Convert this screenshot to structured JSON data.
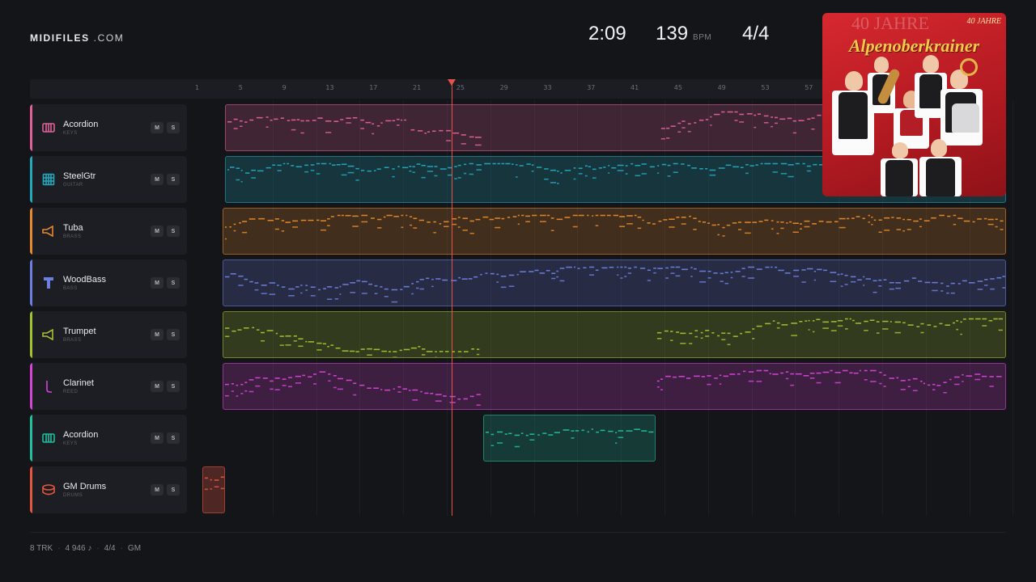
{
  "brand": {
    "name_bold": "MIDIFILES",
    "name_rest": " .COM"
  },
  "stats": {
    "time": "2:09",
    "bpm": "139",
    "bpm_unit": "BPM",
    "meter": "4/4"
  },
  "ruler_ticks": [
    "1",
    "5",
    "9",
    "13",
    "17",
    "21",
    "25",
    "29",
    "33",
    "37",
    "41",
    "45",
    "49",
    "53",
    "57"
  ],
  "tracks": [
    {
      "name": "Acordion",
      "category": "KEYS",
      "color": "#e0609a",
      "icon": "piano-icon"
    },
    {
      "name": "SteelGtr",
      "category": "GUITAR",
      "color": "#22a9bd",
      "icon": "guitar-icon"
    },
    {
      "name": "Tuba",
      "category": "BRASS",
      "color": "#e6892a",
      "icon": "horn-icon"
    },
    {
      "name": "WoodBass",
      "category": "BASS",
      "color": "#6c7fe0",
      "icon": "bass-icon"
    },
    {
      "name": "Trumpet",
      "category": "BRASS",
      "color": "#a3c230",
      "icon": "horn-icon"
    },
    {
      "name": "Clarinet",
      "category": "REED",
      "color": "#d743d7",
      "icon": "reed-icon"
    },
    {
      "name": "Acordion",
      "category": "KEYS",
      "color": "#1fbfa0",
      "icon": "piano-icon"
    },
    {
      "name": "GM Drums",
      "category": "DRUMS",
      "color": "#e5553f",
      "icon": "drum-icon"
    }
  ],
  "buttons": {
    "mute": "M",
    "solo": "S"
  },
  "footer": {
    "tracks": "8 TRK",
    "notes": "4 946 ♪",
    "meter": "4/4",
    "standard": "GM"
  },
  "album": {
    "top_text": "40 JAHRE",
    "badge": "40 JAHRE",
    "title": "Alpenoberkrainer"
  },
  "playhead_bar": 25
}
